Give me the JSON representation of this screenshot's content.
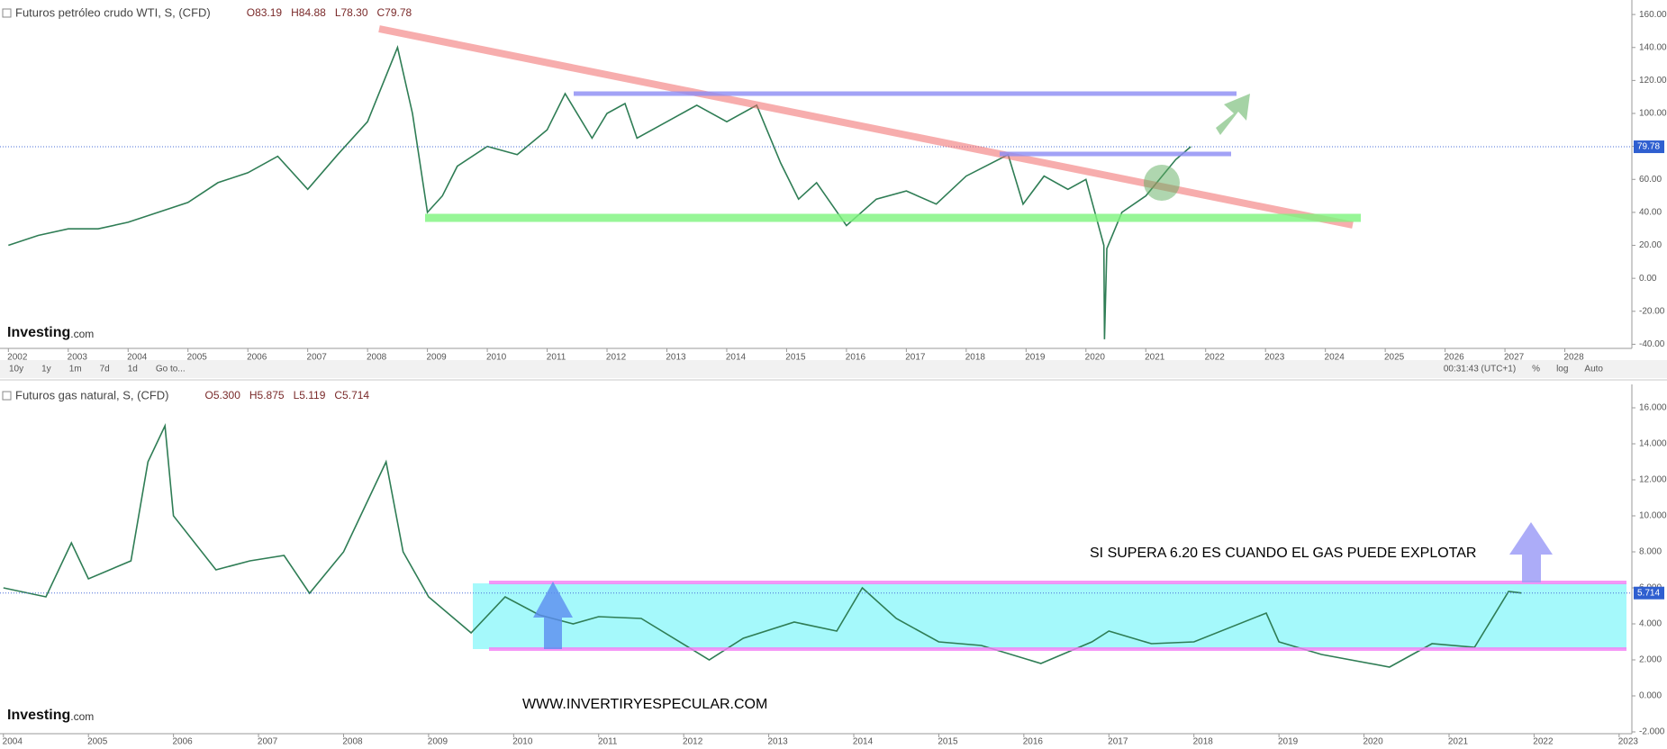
{
  "chart_data": [
    {
      "type": "line",
      "title": "Futuros petróleo crudo WTI, S, (CFD)",
      "header_values": [
        "O83.19",
        "H84.88",
        "L78.30",
        "C79.78"
      ],
      "last_label": "79.78",
      "logo": [
        "Investing",
        ".com"
      ],
      "toolbar": [
        "10y",
        "1y",
        "1m",
        "7d",
        "1d",
        "Go to..."
      ],
      "toolbar_right": [
        "00:31:43 (UTC+1)",
        "%",
        "log",
        "Auto"
      ],
      "color": "#2f7d55",
      "x": [
        2002,
        2002.5,
        2003,
        2003.5,
        2004,
        2004.5,
        2005,
        2005.5,
        2006,
        2006.5,
        2007,
        2007.5,
        2008,
        2008.5,
        2008.75,
        2009,
        2009.25,
        2009.5,
        2010,
        2010.5,
        2011,
        2011.3,
        2011.75,
        2012,
        2012.3,
        2012.5,
        2013,
        2013.5,
        2014,
        2014.5,
        2014.9,
        2015.2,
        2015.5,
        2016,
        2016.5,
        2017,
        2017.5,
        2018,
        2018.7,
        2018.95,
        2019.3,
        2019.7,
        2020,
        2020.3,
        2020.31,
        2020.35,
        2020.6,
        2021,
        2021.5,
        2021.75
      ],
      "values": [
        20,
        26,
        30,
        30,
        34,
        40,
        46,
        58,
        64,
        74,
        54,
        75,
        95,
        140,
        100,
        40,
        50,
        68,
        80,
        75,
        90,
        112,
        85,
        100,
        106,
        85,
        95,
        105,
        95,
        105,
        70,
        48,
        58,
        32,
        48,
        53,
        45,
        62,
        75,
        45,
        62,
        54,
        60,
        20,
        -37,
        18,
        40,
        50,
        72,
        79.78
      ],
      "xlim": [
        2001.86,
        2029.12
      ],
      "ylim": [
        -42.5,
        168.8
      ],
      "xticks": [
        2002,
        2003,
        2004,
        2005,
        2006,
        2007,
        2008,
        2009,
        2010,
        2011,
        2012,
        2013,
        2014,
        2015,
        2016,
        2017,
        2018,
        2019,
        2020,
        2021,
        2022,
        2023,
        2024,
        2025,
        2026,
        2027,
        2028
      ],
      "yticks": [
        {
          "value": 160,
          "label": "160.00"
        },
        {
          "value": 140,
          "label": "140.00"
        },
        {
          "value": 120,
          "label": "120.00"
        },
        {
          "value": 100,
          "label": "100.00"
        },
        {
          "value": 80,
          "label": "80.00"
        },
        {
          "value": 60,
          "label": "60.00"
        },
        {
          "value": 40,
          "label": "40.00"
        },
        {
          "value": 20,
          "label": "20.00"
        },
        {
          "value": 0,
          "label": "0.00"
        },
        {
          "value": -20,
          "label": "-20.00"
        },
        {
          "value": -40,
          "label": "-40.00"
        }
      ]
    },
    {
      "type": "line",
      "title": "Futuros gas natural, S, (CFD)",
      "header_values": [
        "O5.300",
        "H5.875",
        "L5.119",
        "C5.714"
      ],
      "last_label": "5.714",
      "logo": [
        "Investing",
        ".com"
      ],
      "annotations": [
        "SI SUPERA 6.20 ES CUANDO EL GAS PUEDE EXPLOTAR",
        "WWW.INVERTIRYESPECULAR.COM"
      ],
      "color": "#2f7d55",
      "x": [
        2004,
        2004.5,
        2004.8,
        2005,
        2005.5,
        2005.7,
        2005.9,
        2006,
        2006.5,
        2006.9,
        2007.3,
        2007.6,
        2008,
        2008.5,
        2008.7,
        2009,
        2009.5,
        2009.9,
        2010.3,
        2010.7,
        2011,
        2011.5,
        2012.3,
        2012.7,
        2013.3,
        2013.8,
        2014.1,
        2014.5,
        2015,
        2015.5,
        2016.2,
        2016.8,
        2017,
        2017.5,
        2018,
        2018.85,
        2019,
        2019.5,
        2020.3,
        2020.8,
        2021.3,
        2021.7,
        2021.85
      ],
      "values": [
        6,
        5.5,
        8.5,
        6.5,
        7.5,
        13,
        15,
        10,
        7,
        7.5,
        7.8,
        5.7,
        8,
        13,
        8,
        5.5,
        3.5,
        5.5,
        4.5,
        4,
        4.4,
        4.3,
        2,
        3.2,
        4.1,
        3.6,
        6,
        4.3,
        3,
        2.8,
        1.8,
        3,
        3.6,
        2.9,
        3,
        4.6,
        3,
        2.3,
        1.6,
        2.9,
        2.7,
        5.8,
        5.714
      ],
      "xlim": [
        2003.96,
        2023.15
      ],
      "ylim": [
        -2.1,
        17.3
      ],
      "xticks": [
        2004,
        2005,
        2006,
        2007,
        2008,
        2009,
        2010,
        2011,
        2012,
        2013,
        2014,
        2015,
        2016,
        2017,
        2018,
        2019,
        2020,
        2021,
        2022,
        2023
      ],
      "yticks": [
        {
          "value": 16,
          "label": "16.000"
        },
        {
          "value": 14,
          "label": "14.000"
        },
        {
          "value": 12,
          "label": "12.000"
        },
        {
          "value": 10,
          "label": "10.000"
        },
        {
          "value": 8,
          "label": "8.000"
        },
        {
          "value": 6,
          "label": "6.000"
        },
        {
          "value": 4,
          "label": "4.000"
        },
        {
          "value": 2,
          "label": "2.000"
        },
        {
          "value": 0,
          "label": "0.000"
        },
        {
          "value": -2,
          "label": "-2.000"
        }
      ]
    }
  ]
}
